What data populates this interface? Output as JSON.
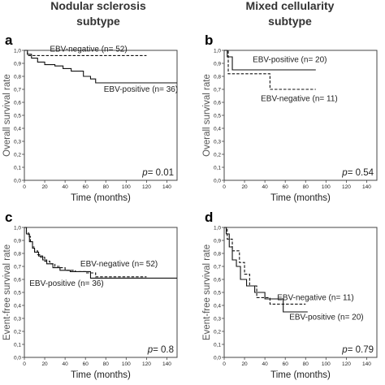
{
  "column_titles": [
    [
      "Nodular sclerosis",
      "subtype"
    ],
    [
      "Mixed cellularity",
      "subtype"
    ]
  ],
  "chart_data": [
    {
      "panel": "a",
      "type": "line",
      "step": true,
      "xlabel": "Time (months)",
      "ylabel": "Overall survival rate",
      "xlim": [
        0,
        150
      ],
      "ylim": [
        0,
        1
      ],
      "xticks": [
        "0",
        "20",
        "40",
        "60",
        "80",
        "100",
        "120",
        "140"
      ],
      "yticks": [
        "0,0",
        "0,1",
        "0,2",
        "0,3",
        "0,4",
        "0,5",
        "0,6",
        "0,7",
        "0,8",
        "0,9",
        "1,0"
      ],
      "p_value": "0.01",
      "series": [
        {
          "name": "EBV-negative (n= 52)",
          "dash": true,
          "x": [
            0,
            3,
            120
          ],
          "y": [
            1.0,
            0.96,
            0.96
          ]
        },
        {
          "name": "EBV-positive (n= 36)",
          "dash": false,
          "x": [
            0,
            3,
            7,
            13,
            20,
            30,
            38,
            46,
            58,
            65,
            70,
            150
          ],
          "y": [
            1.0,
            0.97,
            0.94,
            0.91,
            0.89,
            0.88,
            0.86,
            0.84,
            0.8,
            0.78,
            0.75,
            0.75
          ]
        }
      ],
      "annotations": [
        {
          "series": 0,
          "text": "EBV-negative (n= 52)",
          "x": 25,
          "y": 0.99
        },
        {
          "series": 1,
          "text": "EBV-positive (n= 36)",
          "x": 78,
          "y": 0.68
        }
      ]
    },
    {
      "panel": "b",
      "type": "line",
      "step": true,
      "xlabel": "Time (months)",
      "ylabel": "Overall survival rate",
      "xlim": [
        0,
        150
      ],
      "ylim": [
        0,
        1
      ],
      "xticks": [
        "0",
        "20",
        "40",
        "60",
        "80",
        "100",
        "120",
        "140"
      ],
      "yticks": [
        "0,0",
        "0,1",
        "0,2",
        "0,3",
        "0,4",
        "0,5",
        "0,6",
        "0,7",
        "0,8",
        "0,9",
        "1,0"
      ],
      "p_value": "0.54",
      "series": [
        {
          "name": "EBV-positive (n= 20)",
          "dash": false,
          "x": [
            0,
            3,
            8,
            90
          ],
          "y": [
            1.0,
            0.95,
            0.85,
            0.85
          ]
        },
        {
          "name": "EBV-negative (n= 11)",
          "dash": true,
          "x": [
            0,
            4,
            45,
            90
          ],
          "y": [
            1.0,
            0.82,
            0.7,
            0.7
          ]
        }
      ],
      "annotations": [
        {
          "series": 0,
          "text": "EBV-positive (n= 20)",
          "x": 28,
          "y": 0.91
        },
        {
          "series": 1,
          "text": "EBV-negative (n= 11)",
          "x": 36,
          "y": 0.61
        }
      ]
    },
    {
      "panel": "c",
      "type": "line",
      "step": true,
      "xlabel": "Time (months)",
      "ylabel": "Event-free survival rate",
      "xlim": [
        0,
        150
      ],
      "ylim": [
        0,
        1
      ],
      "xticks": [
        "0",
        "20",
        "40",
        "60",
        "80",
        "100",
        "120",
        "140"
      ],
      "yticks": [
        "0,0",
        "0,1",
        "0,2",
        "0,3",
        "0,4",
        "0,5",
        "0,6",
        "0,7",
        "0,8",
        "0,9",
        "1,0"
      ],
      "p_value": "0.8",
      "series": [
        {
          "name": "EBV-negative (n= 52)",
          "dash": true,
          "x": [
            0,
            2,
            4,
            6,
            8,
            10,
            13,
            16,
            20,
            25,
            30,
            35,
            40,
            50,
            60,
            70,
            90,
            120
          ],
          "y": [
            1.0,
            0.96,
            0.93,
            0.89,
            0.85,
            0.82,
            0.79,
            0.77,
            0.74,
            0.72,
            0.7,
            0.69,
            0.67,
            0.66,
            0.65,
            0.62,
            0.62,
            0.62
          ]
        },
        {
          "name": "EBV-positive (n= 36)",
          "dash": false,
          "x": [
            0,
            2,
            5,
            8,
            10,
            14,
            18,
            22,
            28,
            35,
            45,
            60,
            65,
            150
          ],
          "y": [
            1.0,
            0.95,
            0.89,
            0.84,
            0.81,
            0.78,
            0.75,
            0.72,
            0.69,
            0.67,
            0.66,
            0.66,
            0.61,
            0.61
          ]
        }
      ],
      "annotations": [
        {
          "series": 0,
          "text": "EBV-negative (n= 52)",
          "x": 55,
          "y": 0.7
        },
        {
          "series": 1,
          "text": "EBV-positive (n=  36)",
          "x": 5,
          "y": 0.55
        }
      ]
    },
    {
      "panel": "d",
      "type": "line",
      "step": true,
      "xlabel": "Time (months)",
      "ylabel": "Event-free survival rate",
      "xlim": [
        0,
        150
      ],
      "ylim": [
        0,
        1
      ],
      "xticks": [
        "0",
        "20",
        "40",
        "60",
        "80",
        "100",
        "120",
        "140"
      ],
      "yticks": [
        "0,0",
        "0,1",
        "0,2",
        "0,3",
        "0,4",
        "0,5",
        "0,6",
        "0,7",
        "0,8",
        "0,9",
        "1,0"
      ],
      "p_value": "0.79",
      "series": [
        {
          "name": "EBV-negative (n= 11)",
          "dash": true,
          "x": [
            0,
            3,
            8,
            15,
            20,
            25,
            32,
            45,
            55,
            80
          ],
          "y": [
            1.0,
            0.91,
            0.82,
            0.73,
            0.64,
            0.55,
            0.46,
            0.41,
            0.41,
            0.41
          ]
        },
        {
          "name": "EBV-positive (n= 20)",
          "dash": false,
          "x": [
            0,
            2,
            5,
            8,
            12,
            16,
            22,
            30,
            40,
            58,
            82
          ],
          "y": [
            1.0,
            0.95,
            0.85,
            0.75,
            0.7,
            0.6,
            0.55,
            0.5,
            0.45,
            0.35,
            0.35
          ]
        }
      ],
      "annotations": [
        {
          "series": 0,
          "text": "EBV-negative (n= 11)",
          "x": 52,
          "y": 0.44
        },
        {
          "series": 1,
          "text": "EBV-positive (n= 20)",
          "x": 64,
          "y": 0.29
        }
      ]
    }
  ]
}
